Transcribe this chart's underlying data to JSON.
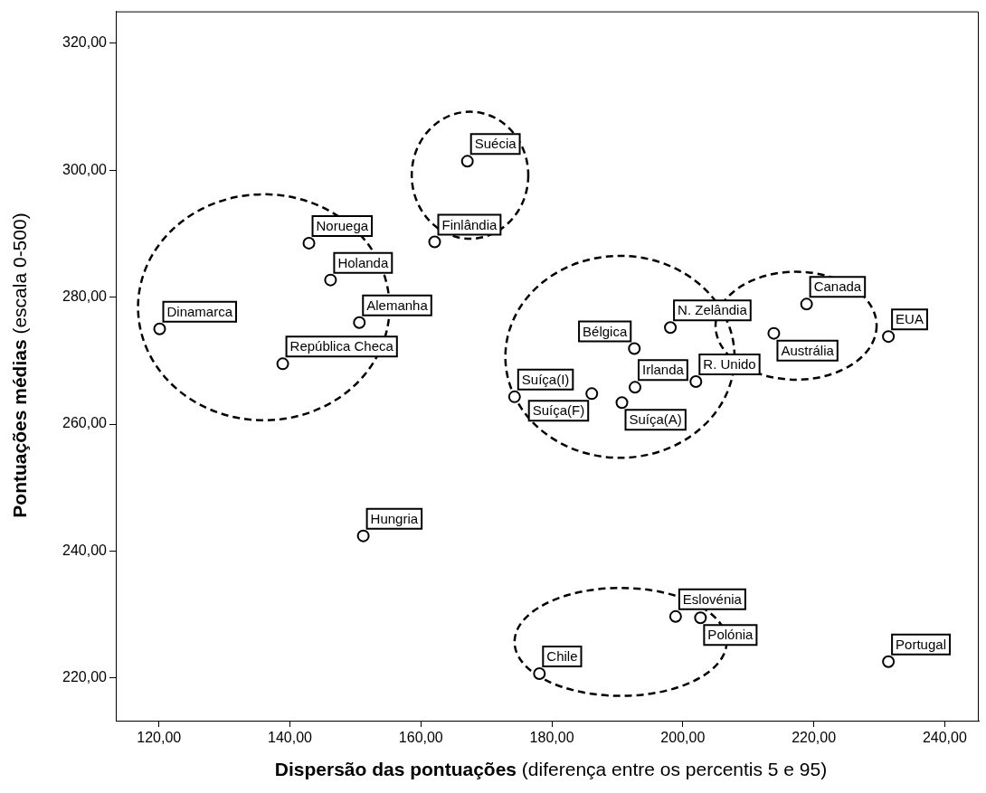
{
  "chart_data": {
    "type": "scatter",
    "xlabel": "Dispersão das pontuações (diferença entre os percentis 5 e 95)",
    "ylabel": "Pontuações médias (escala 0-500)",
    "marker": "circle",
    "xlim": [
      113.4,
      245.2
    ],
    "ylim": [
      213.3,
      325
    ],
    "xticks": [
      {
        "value": 120,
        "label": "120,00"
      },
      {
        "value": 140,
        "label": "140,00"
      },
      {
        "value": 160,
        "label": "160,00"
      },
      {
        "value": 180,
        "label": "180,00"
      },
      {
        "value": 200,
        "label": "200,00"
      },
      {
        "value": 220,
        "label": "220,00"
      },
      {
        "value": 240,
        "label": "240,00"
      }
    ],
    "yticks": [
      {
        "value": 220,
        "label": "220,00"
      },
      {
        "value": 240,
        "label": "240,00"
      },
      {
        "value": 260,
        "label": "260,00"
      },
      {
        "value": 280,
        "label": "280,00"
      },
      {
        "value": 300,
        "label": "300,00"
      },
      {
        "value": 320,
        "label": "320,00"
      }
    ],
    "series": [
      {
        "color": "#000000",
        "x": [
          120.1,
          138.9,
          142.9,
          146.2,
          150.6,
          151.2,
          162.1,
          167.1,
          174.3,
          178.1,
          186.1,
          190.7,
          192.6,
          192.7,
          198.1,
          202.0,
          198.9,
          202.7,
          213.9,
          218.9,
          231.4,
          231.4
        ],
        "values": [
          275.0,
          269.5,
          288.5,
          282.7,
          276.0,
          242.4,
          288.7,
          301.4,
          264.3,
          220.7,
          264.8,
          263.4,
          271.9,
          265.8,
          275.2,
          266.7,
          229.7,
          229.5,
          274.3,
          278.9,
          273.8,
          222.6
        ]
      }
    ],
    "annotations": [
      {
        "text": "Dinamarca",
        "x": 120.1,
        "y": 275.0
      },
      {
        "text": "República Checa",
        "x": 138.9,
        "y": 269.5
      },
      {
        "text": "Noruega",
        "x": 142.9,
        "y": 288.5
      },
      {
        "text": "Holanda",
        "x": 146.2,
        "y": 282.7
      },
      {
        "text": "Alemanha",
        "x": 150.6,
        "y": 276.0
      },
      {
        "text": "Hungria",
        "x": 151.2,
        "y": 242.4
      },
      {
        "text": "Finlândia",
        "x": 162.1,
        "y": 288.7
      },
      {
        "text": "Suécia",
        "x": 167.1,
        "y": 301.4
      },
      {
        "text": "Suíça(I)",
        "x": 174.3,
        "y": 264.3
      },
      {
        "text": "Chile",
        "x": 178.1,
        "y": 220.7
      },
      {
        "text": "Suíça(F)",
        "x": 186.1,
        "y": 264.8
      },
      {
        "text": "Suíça(A)",
        "x": 190.7,
        "y": 263.4
      },
      {
        "text": "Bélgica",
        "x": 192.6,
        "y": 271.9
      },
      {
        "text": "Irlanda",
        "x": 192.7,
        "y": 265.8
      },
      {
        "text": "N. Zelândia",
        "x": 198.1,
        "y": 275.2
      },
      {
        "text": "R. Unido",
        "x": 202.0,
        "y": 266.7
      },
      {
        "text": "Eslovénia",
        "x": 198.9,
        "y": 229.7
      },
      {
        "text": "Polónia",
        "x": 202.7,
        "y": 229.5
      },
      {
        "text": "Austrália",
        "x": 213.9,
        "y": 274.3
      },
      {
        "text": "Canada",
        "x": 218.9,
        "y": 278.9
      },
      {
        "text": "EUA",
        "x": 231.4,
        "y": 273.8
      },
      {
        "text": "Portugal",
        "x": 231.4,
        "y": 222.6
      }
    ]
  }
}
